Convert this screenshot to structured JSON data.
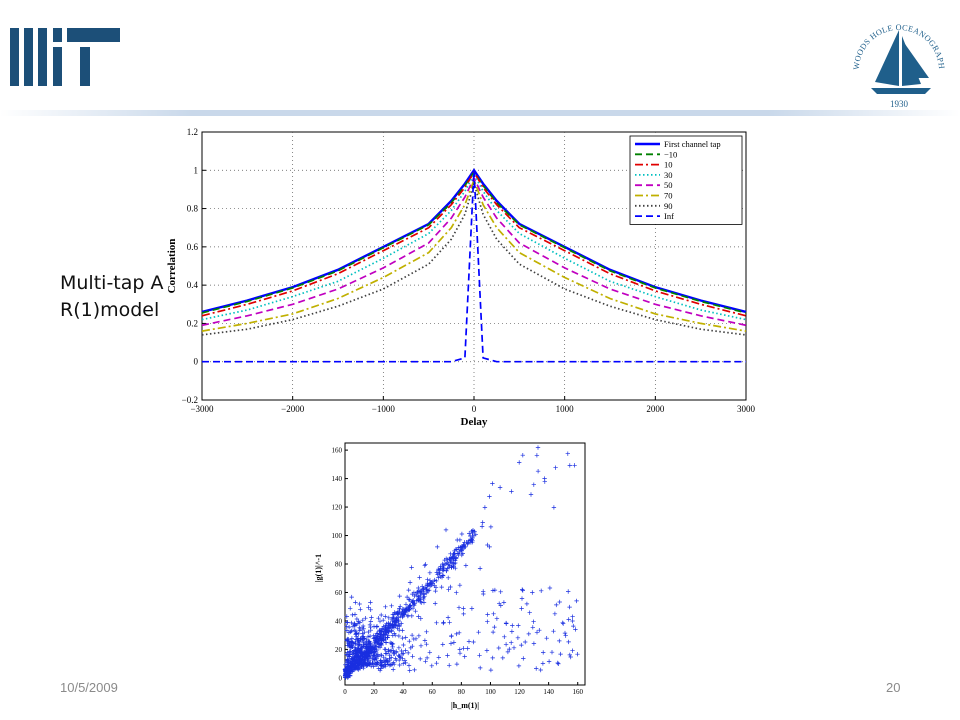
{
  "slide": {
    "side_label": "Multi-tap AR(1)model",
    "date": "10/5/2009",
    "page_number": "20",
    "logos": {
      "left": "MIT",
      "right": "WOODS HOLE OCEANOGRAPHIC INSTITUTION",
      "right_year": "1930"
    }
  },
  "colors": {
    "logo_blue": "#1f5f8b",
    "mit_blue": "#1c4f78",
    "header_rule": "#c3d4e8",
    "scatter_blue": "#1a2fe0"
  },
  "chart_data": [
    {
      "type": "line",
      "title": "",
      "xlabel": "Delay",
      "ylabel": "Correlation",
      "xlim": [
        -3000,
        3000
      ],
      "ylim": [
        -0.2,
        1.2
      ],
      "xticks": [
        -3000,
        -2000,
        -1000,
        0,
        1000,
        2000,
        3000
      ],
      "yticks": [
        -0.2,
        0,
        0.2,
        0.4,
        0.6,
        0.8,
        1,
        1.2
      ],
      "xtick_labels": [
        "−3000",
        "−2000",
        "−1000",
        "0",
        "1000",
        "2000",
        "3000"
      ],
      "ytick_labels": [
        "−0.2",
        "0",
        "0.2",
        "0.4",
        "0.6",
        "0.8",
        "1",
        "1.2"
      ],
      "grid": true,
      "legend_position": "top-right",
      "x": [
        0,
        100,
        250,
        500,
        1000,
        1500,
        2000,
        2500,
        3000
      ],
      "series": [
        {
          "name": "First channel tap",
          "color": "#0000ff",
          "dash": "solid",
          "values": [
            1.0,
            0.93,
            0.84,
            0.72,
            0.6,
            0.48,
            0.39,
            0.32,
            0.26
          ]
        },
        {
          "name": "−10",
          "color": "#008000",
          "dash": "dash",
          "values": [
            0.99,
            0.92,
            0.83,
            0.715,
            0.595,
            0.475,
            0.385,
            0.315,
            0.255
          ]
        },
        {
          "name": "10",
          "color": "#e00000",
          "dash": "dashdot",
          "values": [
            0.99,
            0.91,
            0.82,
            0.7,
            0.58,
            0.46,
            0.37,
            0.3,
            0.24
          ]
        },
        {
          "name": "30",
          "color": "#00bfbf",
          "dash": "dot",
          "values": [
            0.98,
            0.89,
            0.79,
            0.67,
            0.54,
            0.42,
            0.34,
            0.27,
            0.22
          ]
        },
        {
          "name": "50",
          "color": "#c000c0",
          "dash": "dash",
          "values": [
            0.96,
            0.86,
            0.75,
            0.62,
            0.49,
            0.38,
            0.3,
            0.24,
            0.19
          ]
        },
        {
          "name": "70",
          "color": "#c0b000",
          "dash": "dashdot",
          "values": [
            0.95,
            0.82,
            0.7,
            0.57,
            0.44,
            0.33,
            0.25,
            0.2,
            0.16
          ]
        },
        {
          "name": "90",
          "color": "#404040",
          "dash": "dot",
          "values": [
            0.93,
            0.77,
            0.64,
            0.51,
            0.38,
            0.29,
            0.22,
            0.17,
            0.14
          ]
        },
        {
          "name": "Inf",
          "color": "#0000ff",
          "dash": "dash",
          "values": [
            1.0,
            0.02,
            0.0,
            0.0,
            0.0,
            0.0,
            0.0,
            0.0,
            0.0
          ]
        }
      ]
    },
    {
      "type": "scatter",
      "xlabel": "|h_m(1)|",
      "ylabel": "|g(1)|^-1",
      "xlim": [
        0,
        165
      ],
      "ylim": [
        -5,
        165
      ],
      "xticks": [
        0,
        20,
        40,
        60,
        80,
        100,
        120,
        140,
        160
      ],
      "yticks": [
        0,
        20,
        40,
        60,
        80,
        100,
        120,
        140,
        160
      ],
      "xtick_labels": [
        "0",
        "20",
        "40",
        "60",
        "80",
        "100",
        "120",
        "140",
        "160"
      ],
      "ytick_labels": [
        "0",
        "20",
        "40",
        "60",
        "80",
        "100",
        "120",
        "140",
        "160"
      ],
      "marker": "+",
      "point_count_estimate": 1200
    }
  ]
}
